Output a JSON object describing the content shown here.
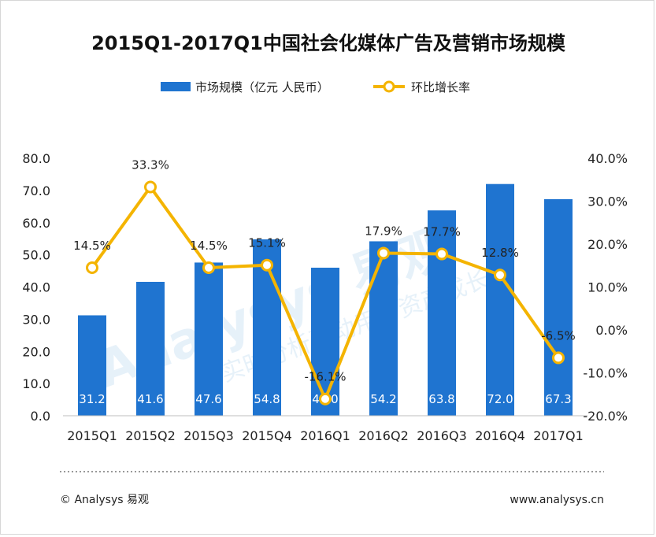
{
  "title": "2015Q1-2017Q1中国社会化媒体广告及营销市场规模",
  "colors": {
    "bar": "#1f74d0",
    "line": "#f4b400",
    "marker_fill": "#ffffff",
    "dotted_rule": "#999999"
  },
  "chart_data": {
    "type": "bar+line",
    "categories": [
      "2015Q1",
      "2015Q2",
      "2015Q3",
      "2015Q4",
      "2016Q1",
      "2016Q2",
      "2016Q3",
      "2016Q4",
      "2017Q1"
    ],
    "series": [
      {
        "name": "市场规模（亿元 人民币）",
        "type": "bar",
        "axis": "left",
        "values": [
          31.2,
          41.6,
          47.6,
          54.8,
          46.0,
          54.2,
          63.8,
          72.0,
          67.3
        ],
        "labels": [
          "31.2",
          "41.6",
          "47.6",
          "54.8",
          "46.0",
          "54.2",
          "63.8",
          "72.0",
          "67.3"
        ]
      },
      {
        "name": "环比增长率",
        "type": "line",
        "axis": "right",
        "values": [
          14.5,
          33.3,
          14.5,
          15.1,
          -16.1,
          17.9,
          17.7,
          12.8,
          -6.5
        ],
        "labels": [
          "14.5%",
          "33.3%",
          "14.5%",
          "15.1%",
          "-16.1%",
          "17.9%",
          "17.7%",
          "12.8%",
          "-6.5%"
        ]
      }
    ],
    "y_left": {
      "lim": [
        0,
        80
      ],
      "ticks": [
        "0.0",
        "10.0",
        "20.0",
        "30.0",
        "40.0",
        "50.0",
        "60.0",
        "70.0",
        "80.0"
      ]
    },
    "y_right": {
      "lim": [
        -20,
        40
      ],
      "ticks": [
        "-20.0%",
        "-10.0%",
        "0.0%",
        "10.0%",
        "20.0%",
        "30.0%",
        "40.0%"
      ]
    },
    "grid": false,
    "legend_position": "top"
  },
  "watermark": {
    "brand": "Analysys 易观",
    "slogan": "实时分析驱动用户资产成长"
  },
  "footer": {
    "copyright": "© Analysys 易观",
    "website": "www.analysys.cn"
  }
}
